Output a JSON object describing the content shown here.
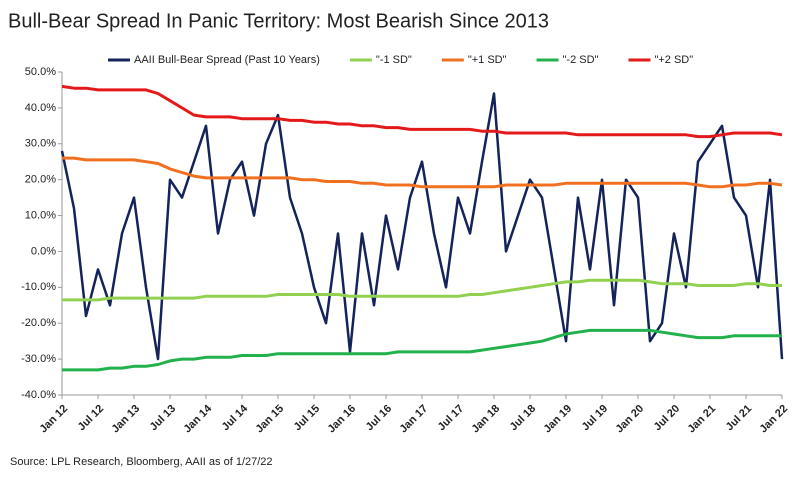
{
  "chart_data": {
    "type": "line",
    "title": "Bull-Bear Spread In Panic Territory: Most Bearish Since 2013",
    "source": "Source: LPL Research, Bloomberg, AAII as of 1/27/22",
    "categories": [
      "Jan 12",
      null,
      null,
      "Jul 12",
      null,
      null,
      "Jan 13",
      null,
      null,
      "Jul 13",
      null,
      null,
      "Jan 14",
      null,
      null,
      "Jul 14",
      null,
      null,
      "Jan 15",
      null,
      null,
      "Jul 15",
      null,
      null,
      "Jan 16",
      null,
      null,
      "Jul 16",
      null,
      null,
      "Jan 17",
      null,
      null,
      "Jul 17",
      null,
      null,
      "Jan 18",
      null,
      null,
      "Jul 18",
      null,
      null,
      "Jan 19",
      null,
      null,
      "Jul 19",
      null,
      null,
      "Jan 20",
      null,
      null,
      "Jul 20",
      null,
      null,
      "Jan 21",
      null,
      null,
      "Jul 21",
      null,
      null,
      "Jan 22"
    ],
    "ylim": [
      -40,
      50
    ],
    "yticks": [
      {
        "value": -40,
        "label": "-40.0%"
      },
      {
        "value": -30,
        "label": "-30.0%"
      },
      {
        "value": -20,
        "label": "-20.0%"
      },
      {
        "value": -10,
        "label": "-10.0%"
      },
      {
        "value": 0,
        "label": "0.0%"
      },
      {
        "value": 10,
        "label": "10.0%"
      },
      {
        "value": 20,
        "label": "20.0%"
      },
      {
        "value": 30,
        "label": "30.0%"
      },
      {
        "value": 40,
        "label": "40.0%"
      },
      {
        "value": 50,
        "label": "50.0%"
      }
    ],
    "grid": false,
    "series": [
      {
        "name": "AAII Bull-Bear Spread (Past 10 Years)",
        "color": "#14245a",
        "width": 2.5,
        "values": [
          28,
          12,
          -18,
          -5,
          -15,
          5,
          15,
          -10,
          -30,
          20,
          15,
          25,
          35,
          5,
          20,
          25,
          10,
          30,
          38,
          15,
          5,
          -10,
          -20,
          5,
          -28,
          5,
          -15,
          10,
          -5,
          15,
          25,
          5,
          -10,
          15,
          5,
          25,
          44,
          0,
          10,
          20,
          15,
          -5,
          -25,
          15,
          -5,
          20,
          -15,
          20,
          15,
          -25,
          -20,
          5,
          -10,
          25,
          30,
          35,
          15,
          10,
          -10,
          20,
          -30
        ]
      },
      {
        "name": "\"-1 SD\"",
        "color": "#92d050",
        "width": 3,
        "values": [
          -13.5,
          -13.5,
          -13.5,
          -13.5,
          -13,
          -13,
          -13,
          -13,
          -13,
          -13,
          -13,
          -13,
          -12.5,
          -12.5,
          -12.5,
          -12.5,
          -12.5,
          -12.5,
          -12,
          -12,
          -12,
          -12,
          -12,
          -12,
          -12.5,
          -12.5,
          -12.5,
          -12.5,
          -12.5,
          -12.5,
          -12.5,
          -12.5,
          -12.5,
          -12.5,
          -12,
          -12,
          -11.5,
          -11,
          -10.5,
          -10,
          -9.5,
          -9,
          -8.5,
          -8.5,
          -8,
          -8,
          -8,
          -8,
          -8,
          -8.5,
          -9,
          -9,
          -9,
          -9.5,
          -9.5,
          -9.5,
          -9.5,
          -9,
          -9,
          -9.5,
          -9.5
        ]
      },
      {
        "name": "\"+1 SD\"",
        "color": "#f07020",
        "width": 3,
        "values": [
          26,
          26,
          25.5,
          25.5,
          25.5,
          25.5,
          25.5,
          25,
          24.5,
          23,
          22,
          21,
          20.5,
          20.5,
          20.5,
          20.5,
          20.5,
          20.5,
          20.5,
          20.5,
          20,
          20,
          19.5,
          19.5,
          19.5,
          19,
          19,
          18.5,
          18.5,
          18.5,
          18,
          18,
          18,
          18,
          18,
          18,
          18,
          18.5,
          18.5,
          18.5,
          18.5,
          18.5,
          19,
          19,
          19,
          19,
          19,
          19,
          19,
          19,
          19,
          19,
          19,
          18.5,
          18,
          18,
          18.5,
          18.5,
          19,
          19,
          18.5
        ]
      },
      {
        "name": "\"-2 SD\"",
        "color": "#22b14c",
        "width": 3,
        "values": [
          -33,
          -33,
          -33,
          -33,
          -32.5,
          -32.5,
          -32,
          -32,
          -31.5,
          -30.5,
          -30,
          -30,
          -29.5,
          -29.5,
          -29.5,
          -29,
          -29,
          -29,
          -28.5,
          -28.5,
          -28.5,
          -28.5,
          -28.5,
          -28.5,
          -28.5,
          -28.5,
          -28.5,
          -28.5,
          -28,
          -28,
          -28,
          -28,
          -28,
          -28,
          -28,
          -27.5,
          -27,
          -26.5,
          -26,
          -25.5,
          -25,
          -24,
          -23,
          -22.5,
          -22,
          -22,
          -22,
          -22,
          -22,
          -22,
          -22.5,
          -23,
          -23.5,
          -24,
          -24,
          -24,
          -23.5,
          -23.5,
          -23.5,
          -23.5,
          -23.5
        ]
      },
      {
        "name": "\"+2 SD\"",
        "color": "#e41a1a",
        "width": 3,
        "values": [
          46,
          45.5,
          45.5,
          45,
          45,
          45,
          45,
          45,
          44,
          42,
          40,
          38,
          37.5,
          37.5,
          37.5,
          37,
          37,
          37,
          37,
          36.5,
          36.5,
          36,
          36,
          35.5,
          35.5,
          35,
          35,
          34.5,
          34.5,
          34,
          34,
          34,
          34,
          34,
          34,
          33.5,
          33.5,
          33,
          33,
          33,
          33,
          33,
          33,
          32.5,
          32.5,
          32.5,
          32.5,
          32.5,
          32.5,
          32.5,
          32.5,
          32.5,
          32.5,
          32,
          32,
          32.5,
          33,
          33,
          33,
          33,
          32.5
        ]
      }
    ]
  }
}
